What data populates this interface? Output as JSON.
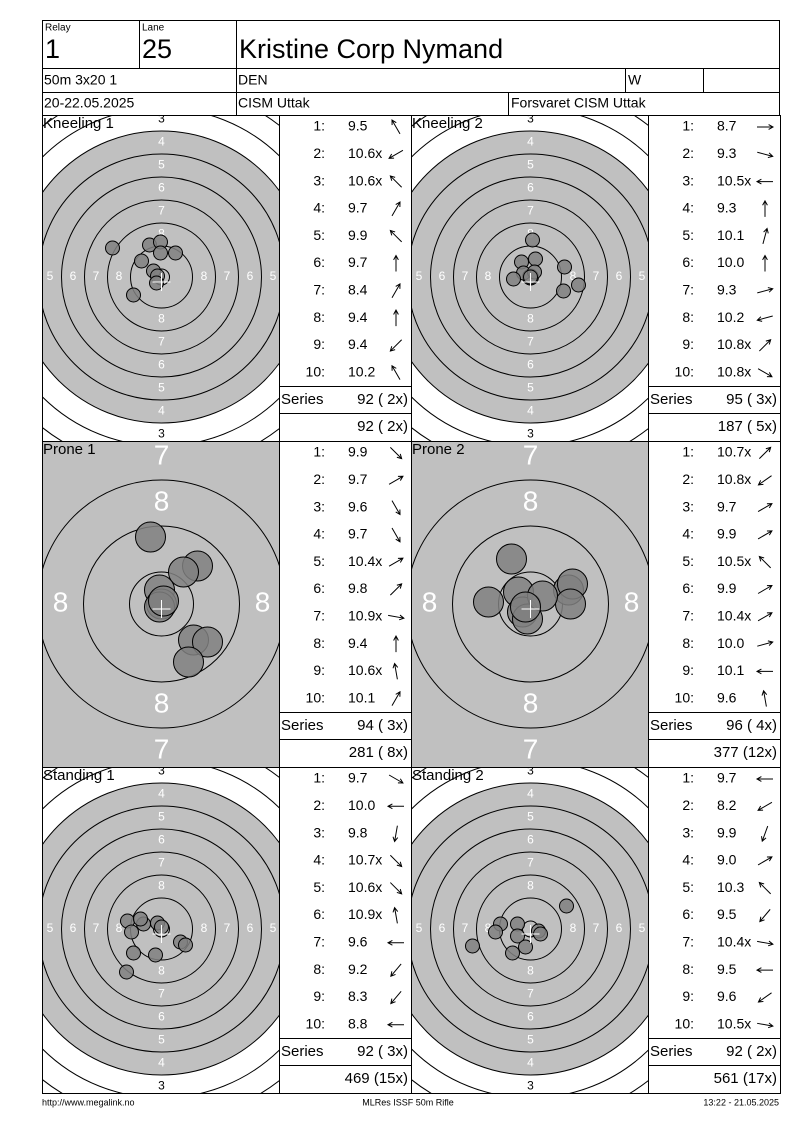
{
  "header": {
    "relay_label": "Relay",
    "relay": "1",
    "lane_label": "Lane",
    "lane": "25",
    "name": "Kristine Corp Nymand",
    "event": "50m 3x20 1",
    "nation": "DEN",
    "gender": "W",
    "date": "20-22.05.2025",
    "club": "CISM Uttak",
    "team": "Forsvaret CISM Uttak"
  },
  "shot_labels": [
    "1:",
    "2:",
    "3:",
    "4:",
    "5:",
    "6:",
    "7:",
    "8:",
    "9:",
    "10:"
  ],
  "series_label": "Series",
  "small_target_labels": [
    "3",
    "4",
    "5",
    "6",
    "7",
    "8"
  ],
  "zoom_target_labels": [
    "7",
    "8"
  ],
  "panels": [
    {
      "title": "Kneeling 1",
      "shots": [
        "9.5",
        "10.6x",
        "10.6x",
        "9.7",
        "9.9",
        "9.7",
        "8.4",
        "9.4",
        "9.4",
        "10.2"
      ],
      "series": "92 ( 2x)",
      "total": "92 ( 2x)"
    },
    {
      "title": "Kneeling 2",
      "shots": [
        "8.7",
        "9.3",
        "10.5x",
        "9.3",
        "10.1",
        "10.0",
        "9.3",
        "10.2",
        "10.8x",
        "10.8x"
      ],
      "series": "95 ( 3x)",
      "total": "187 ( 5x)"
    },
    {
      "title": "Prone 1",
      "shots": [
        "9.9",
        "9.7",
        "9.6",
        "9.7",
        "10.4x",
        "9.8",
        "10.9x",
        "9.4",
        "10.6x",
        "10.1"
      ],
      "series": "94 ( 3x)",
      "total": "281 ( 8x)"
    },
    {
      "title": "Prone 2",
      "shots": [
        "10.7x",
        "10.8x",
        "9.7",
        "9.9",
        "10.5x",
        "9.9",
        "10.4x",
        "10.0",
        "10.1",
        "9.6"
      ],
      "series": "96 ( 4x)",
      "total": "377 (12x)"
    },
    {
      "title": "Standing 1",
      "shots": [
        "9.7",
        "10.0",
        "9.8",
        "10.7x",
        "10.6x",
        "10.9x",
        "9.6",
        "9.2",
        "8.3",
        "8.8"
      ],
      "series": "92 ( 3x)",
      "total": "469 (15x)"
    },
    {
      "title": "Standing 2",
      "shots": [
        "9.7",
        "8.2",
        "9.9",
        "9.0",
        "10.3",
        "9.5",
        "10.4x",
        "9.5",
        "9.6",
        "10.5x"
      ],
      "series": "92 ( 2x)",
      "total": "561 (17x)"
    }
  ],
  "footer": {
    "url": "http://www.megalink.no",
    "software": "MLRes ISSF 50m Rifle",
    "timestamp": "13:22 - 21.05.2025"
  }
}
